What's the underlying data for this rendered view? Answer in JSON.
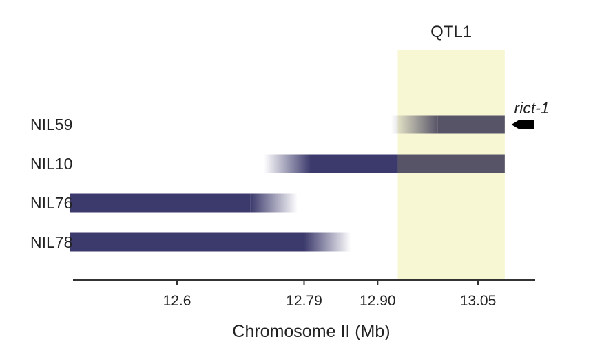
{
  "chart_data": {
    "type": "bar",
    "xlabel": "Chromosome II (Mb)",
    "ylabel": "",
    "title": "",
    "x_ticks": [
      "12.6",
      "12.79",
      "12.90",
      "13.05"
    ],
    "x_tick_values": [
      12.6,
      12.79,
      12.9,
      13.05
    ],
    "xlim": [
      12.42,
      13.2
    ],
    "grid": false,
    "legend": "none",
    "rows": [
      {
        "label": "NIL59",
        "fade_start": 12.92,
        "solid_start": 12.99,
        "solid_end": 13.09,
        "fade_end": null
      },
      {
        "label": "NIL10",
        "fade_start": 12.73,
        "solid_start": 12.8,
        "solid_end": 13.09,
        "fade_end": null
      },
      {
        "label": "NIL76",
        "fade_start": null,
        "solid_start": 12.44,
        "solid_end": 12.71,
        "fade_end": 12.78
      },
      {
        "label": "NIL78",
        "fade_start": null,
        "solid_start": 12.44,
        "solid_end": 12.79,
        "fade_end": 12.86
      }
    ],
    "region": {
      "label": "QTL1",
      "start": 12.93,
      "end": 13.09
    },
    "gene": {
      "label": "rict-1",
      "position": 13.1,
      "direction": "left"
    },
    "colors": {
      "bar": "#3c3a6c",
      "bar_in_region": "#585468",
      "region_fill": "#f7f7d4",
      "axis": "#333333"
    }
  }
}
